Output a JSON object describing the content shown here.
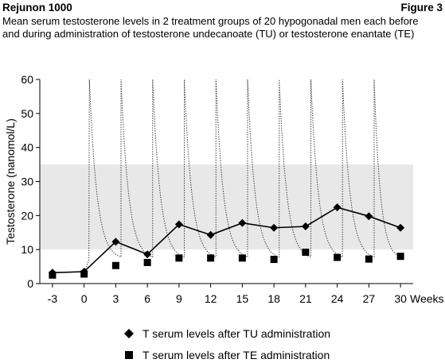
{
  "header": {
    "title": "Rejunon 1000",
    "figure": "Figure 3",
    "subtitle": "Mean serum testosterone levels in 2 treatment groups of 20 hypogonadal men each before and during administration of testosterone undecanoate (TU) or testosterone enantate (TE)"
  },
  "chart_data": {
    "type": "line",
    "title": "",
    "xlabel": "Weeks",
    "ylabel": "Testosterone (nanomol/L)",
    "ylim": [
      0,
      60
    ],
    "xlim": [
      -4.2,
      31.2
    ],
    "yticks": [
      0,
      10,
      20,
      30,
      40,
      50,
      60
    ],
    "xticks": [
      "-3",
      "0",
      "3",
      "6",
      "9",
      "12",
      "15",
      "18",
      "21",
      "24",
      "27",
      "30"
    ],
    "xtick_values": [
      -3,
      0,
      3,
      6,
      9,
      12,
      15,
      18,
      21,
      24,
      27,
      30
    ],
    "reference_band": [
      10,
      35
    ],
    "band_color": "#e8e8e8",
    "grid": false,
    "legend_position": "bottom",
    "series": [
      {
        "name": "T serum levels after TU administration",
        "marker": "diamond",
        "style": "solid",
        "x": [
          -3,
          0,
          3,
          6,
          9,
          12,
          15,
          18,
          21,
          24,
          27,
          30
        ],
        "values": [
          3.2,
          3.5,
          12.3,
          8.6,
          17.4,
          14.3,
          17.8,
          16.4,
          16.8,
          22.4,
          19.8,
          16.4
        ]
      },
      {
        "name": "T serum levels after TE administration",
        "marker": "square",
        "style": "none",
        "x": [
          -3,
          0,
          3,
          6,
          9,
          12,
          15,
          18,
          21,
          24,
          27,
          30
        ],
        "values": [
          2.5,
          2.8,
          5.3,
          6.2,
          7.5,
          7.5,
          7.5,
          7.1,
          9.2,
          7.7,
          7.2,
          8.0
        ]
      },
      {
        "name": "",
        "style": "dotted",
        "injection_weeks": [
          0.5,
          3.5,
          6.5,
          9.5,
          12.5,
          15.5,
          18.5,
          21.5,
          24.5,
          27.5
        ],
        "values": [
          60,
          60,
          60,
          60,
          60,
          60,
          60,
          60,
          60,
          60
        ],
        "trough": 7
      }
    ]
  }
}
